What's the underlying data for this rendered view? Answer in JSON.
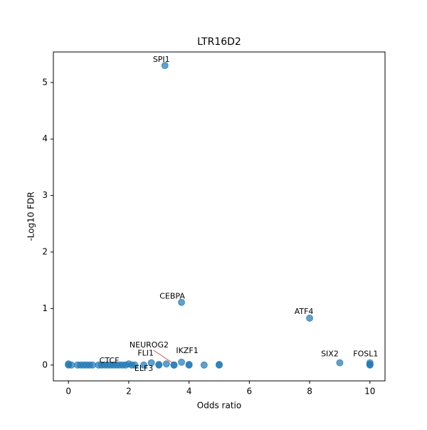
{
  "chart_data": {
    "type": "scatter",
    "title": "LTR16D2",
    "x_label": "Odds ratio",
    "y_label": "-Log10 FDR",
    "color": "#1f77b4",
    "x": [
      3.2,
      3.75,
      8,
      9,
      10,
      10,
      10,
      3.75,
      3.5,
      2.75,
      1.0,
      2.5,
      0,
      0,
      0.1,
      0.3,
      0.4,
      0.5,
      0.6,
      0.7,
      0.8,
      1.1,
      1.2,
      1.3,
      1.4,
      1.5,
      1.6,
      1.7,
      1.8,
      1.9,
      2.0,
      2.1,
      2.2,
      3,
      3,
      3.25,
      3.5,
      4,
      4,
      4.5,
      5,
      5
    ],
    "values": [
      5.3,
      1.11,
      0.83,
      0.04,
      0.04,
      0.0,
      0.01,
      0.05,
      0.0,
      0.04,
      0.0,
      0.0,
      0,
      0.02,
      0,
      0,
      0,
      0,
      0,
      0,
      0,
      0,
      0,
      0,
      0,
      0,
      0,
      0,
      0,
      0,
      0.02,
      0,
      0,
      0,
      0.01,
      0.02,
      0.0,
      0,
      0.01,
      0,
      0,
      0.01
    ],
    "labels": [
      "SPI1",
      "CEBPA",
      "ATF4",
      "SIX2",
      "FOSL1",
      null,
      null,
      "IKZF1",
      "NEUROG2",
      "FLI1",
      "CTCF",
      "ELF3",
      null,
      null,
      null,
      null,
      null,
      null,
      null,
      null,
      null,
      null,
      null,
      null,
      null,
      null,
      null,
      null,
      null,
      null,
      null,
      null,
      null,
      null,
      null,
      null,
      null,
      null,
      null,
      null,
      null,
      null
    ],
    "xlim": [
      -0.5,
      10.5
    ],
    "ylim": [
      -0.28,
      5.54
    ],
    "xticks": [
      0,
      2,
      4,
      6,
      8,
      10
    ],
    "yticks": [
      0,
      1,
      2,
      3,
      4,
      5
    ]
  }
}
